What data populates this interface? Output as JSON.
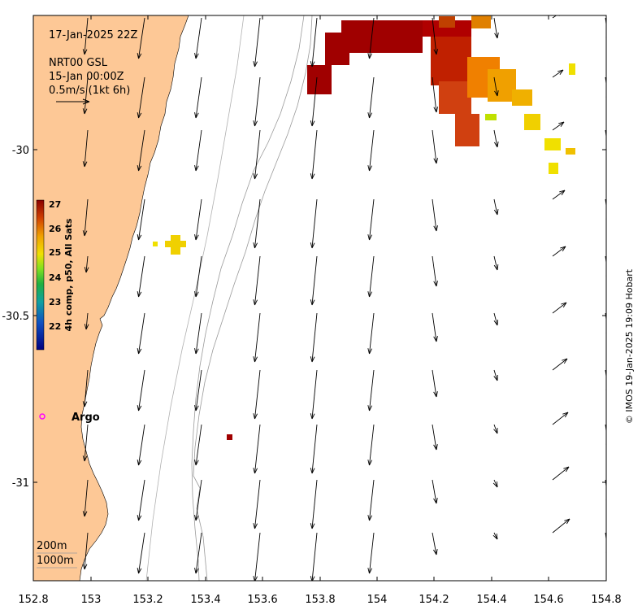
{
  "map": {
    "date_label": "17-Jan-2025 22Z",
    "product_line1": "NRT00 GSL",
    "product_line2": "15-Jan 00:00Z",
    "scale_label": "0.5m/s (1kt 6h)",
    "argo_label": "Argo",
    "isobath_200": "200m",
    "isobath_1000": "1000m",
    "credit": "© IMOS 19-Jan-2025 19:09 Hobart"
  },
  "colorbar": {
    "title": "4h comp, p50, All Sats",
    "ticks": [
      "27",
      "26",
      "25",
      "24",
      "23",
      "22"
    ]
  },
  "axes": {
    "x_ticks": [
      "152.8",
      "153",
      "153.2",
      "153.4",
      "153.6",
      "153.8",
      "154",
      "154.2",
      "154.4",
      "154.6",
      "154.8"
    ],
    "y_ticks": [
      "-30",
      "-30.5",
      "-31"
    ]
  },
  "colors": {
    "land": "#fdc896",
    "argo": "#ff00ff",
    "sst_hot": "#a00000"
  }
}
